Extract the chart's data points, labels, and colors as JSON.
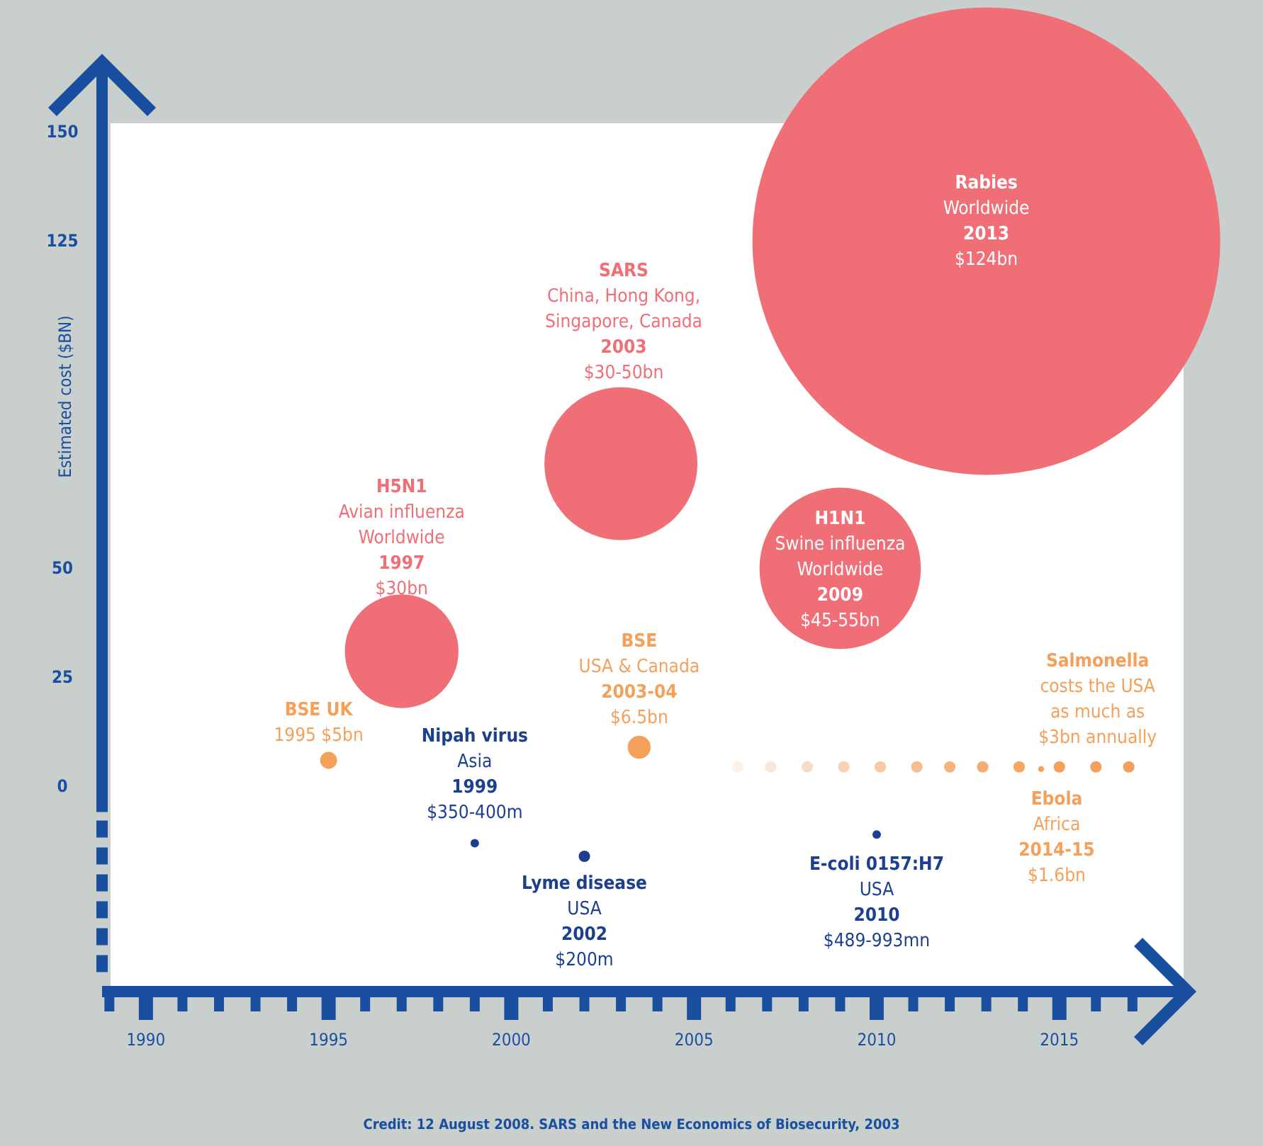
{
  "chart_data": {
    "type": "bubble",
    "ylabel": "Estimated cost ($BN)",
    "xlim": [
      1988.8,
      2018.4
    ],
    "ylim": [
      -47,
      165
    ],
    "xticks": [
      {
        "value": 1989,
        "label": null
      },
      1990,
      {
        "value": 1991,
        "label": null
      },
      {
        "value": 1992,
        "label": null
      },
      {
        "value": 1993,
        "label": null
      },
      {
        "value": 1994,
        "label": null
      },
      1995,
      {
        "value": 1996,
        "label": null
      },
      {
        "value": 1997,
        "label": null
      },
      {
        "value": 1998,
        "label": null
      },
      {
        "value": 1999,
        "label": null
      },
      2000,
      {
        "value": 2001,
        "label": null
      },
      {
        "value": 2002,
        "label": null
      },
      {
        "value": 2003,
        "label": null
      },
      {
        "value": 2004,
        "label": null
      },
      2005,
      {
        "value": 2006,
        "label": null
      },
      {
        "value": 2007,
        "label": null
      },
      {
        "value": 2008,
        "label": null
      },
      {
        "value": 2009,
        "label": null
      },
      2010,
      {
        "value": 2011,
        "label": null
      },
      {
        "value": 2012,
        "label": null
      },
      {
        "value": 2013,
        "label": null
      },
      {
        "value": 2014,
        "label": null
      },
      2015,
      {
        "value": 2016,
        "label": null
      },
      {
        "value": 2017,
        "label": null
      }
    ],
    "yticks": [
      0,
      25,
      50,
      125,
      150
    ],
    "grid": false,
    "series": [
      {
        "color": "#f06e76",
        "x": [
          2013,
          2003,
          2009,
          1997
        ],
        "values": [
          125,
          74,
          50,
          31
        ],
        "sizes": [
          1,
          0.107,
          0.119,
          0.059
        ]
      },
      {
        "color": "#f5a05a",
        "x": [
          1995,
          2003.5,
          2014.5
        ],
        "values": [
          6,
          9,
          4
        ],
        "sizes": [
          0.0013,
          0.0024,
          0.00015
        ]
      },
      {
        "x": [
          2006.2,
          2007.1,
          2008.1,
          2009.1,
          2010.1,
          2011.1,
          2012.0,
          2012.9,
          2013.9,
          2015.0,
          2016.0,
          2016.9
        ],
        "values": [
          4.5,
          4.5,
          4.5,
          4.5,
          4.5,
          4.5,
          4.5,
          4.5,
          4.5,
          4.5,
          4.5,
          4.5
        ],
        "sizes": [
          0.0006,
          0.0006,
          0.0006,
          0.0006,
          0.0006,
          0.0006,
          0.0006,
          0.0006,
          0.0006,
          0.0006,
          0.0006,
          0.0006
        ],
        "colors": [
          "#fdf2ea",
          "#fbe7d8",
          "#f9dcc5",
          "#f8d2b3",
          "#f7c8a1",
          "#f6bd8f",
          "#f5b47f",
          "#f5ac70",
          "#f5a662",
          "#f5a05a",
          "#f5a05a",
          "#f5a05a"
        ]
      },
      {
        "color": "#1c3f8f",
        "x": [
          1999,
          2002,
          2010
        ],
        "values": [
          -13,
          -16,
          -11
        ],
        "sizes": [
          0.00033,
          0.0006,
          0.00033
        ]
      }
    ],
    "annotations": [
      {
        "text": "Rabies\nWorldwide\n2013\n$124bn",
        "x": 2013,
        "y": 125
      },
      "SARS\nChina, Hong Kong,\nSingapore, Canada\n2003\n$30-50bn",
      {
        "text": "H1N1\nSwine influenza\nWorldwide\n2009\n$45-55bn",
        "x": 2009,
        "y": 50
      },
      {
        "text": "H5N1\nAvian influenza\nWorldwide\n1997\n$30bn",
        "x": 1997,
        "y": 31
      },
      {
        "text": "BSE UK\n1995 $5bn",
        "x": 1995,
        "y": 6
      },
      {
        "text": "BSE\nUSA & Canada\n2003-04\n$6.5bn",
        "x": 2003.5,
        "y": 9
      },
      {
        "text": "Nipah virus\nAsia\n1999\n$350-400m",
        "x": 1999,
        "y": -13
      },
      {
        "text": "Lyme disease\nUSA\n2002\n$200m",
        "x": 2002,
        "y": -16
      },
      {
        "text": "E-coli 0157:H7\nUSA\n2010\n$489-993mn",
        "x": 2010,
        "y": -11
      },
      {
        "text": "Ebola\nAfrica\n2014-15\n$1.6bn",
        "x": 2014.5,
        "y": 4
      },
      {
        "text": "Salmonella\ncosts the USA\nas much as\n$3bn annually",
        "x": 2016.9,
        "y": 4.5
      },
      "Credit: 12 August 2008. SARS and the New Economics of Biosecurity, 2003"
    ]
  }
}
